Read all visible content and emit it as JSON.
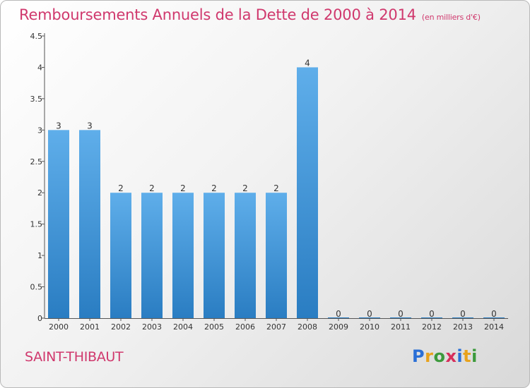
{
  "title": "Remboursements Annuels de la Dette de 2000 à 2014",
  "title_unit": "(en milliers d'€)",
  "commune": "SAINT-THIBAUT",
  "logo": {
    "text": "Proxiti",
    "letters": [
      {
        "ch": "P",
        "color": "#2a6fd6"
      },
      {
        "ch": "r",
        "color": "#e8a21c"
      },
      {
        "ch": "o",
        "color": "#3c9a3c"
      },
      {
        "ch": "x",
        "color": "#d62f5b"
      },
      {
        "ch": "i",
        "color": "#2a6fd6"
      },
      {
        "ch": "t",
        "color": "#e8a21c"
      },
      {
        "ch": "i",
        "color": "#3c9a3c"
      }
    ]
  },
  "chart_data": {
    "type": "bar",
    "categories": [
      "2000",
      "2001",
      "2002",
      "2003",
      "2004",
      "2005",
      "2006",
      "2007",
      "2008",
      "2009",
      "2010",
      "2011",
      "2012",
      "2013",
      "2014"
    ],
    "values": [
      3,
      3,
      2,
      2,
      2,
      2,
      2,
      2,
      4,
      0,
      0,
      0,
      0,
      0,
      0
    ],
    "data_labels": [
      "3",
      "3",
      "2",
      "2",
      "2",
      "2",
      "2",
      "2",
      "4",
      "0",
      "0",
      "0",
      "0",
      "0",
      "0"
    ],
    "yticks": [
      {
        "value": 0,
        "label": "0"
      },
      {
        "value": 0.5,
        "label": "0.5"
      },
      {
        "value": 1,
        "label": "1"
      },
      {
        "value": 1.5,
        "label": "1.5"
      },
      {
        "value": 2,
        "label": "2"
      },
      {
        "value": 2.5,
        "label": "2.5"
      },
      {
        "value": 3,
        "label": "3"
      },
      {
        "value": 3.5,
        "label": "3.5"
      },
      {
        "value": 4,
        "label": "4"
      },
      {
        "value": 4.5,
        "label": "4.5"
      }
    ],
    "ylim": [
      0,
      4.5
    ],
    "grid": false,
    "bar_color_top": "#5faeea",
    "bar_color_bottom": "#2a7dc2"
  }
}
